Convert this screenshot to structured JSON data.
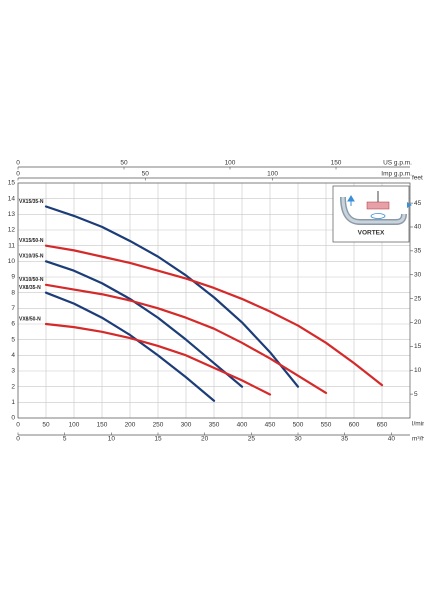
{
  "chart_data": {
    "type": "line",
    "x_label": "l/min",
    "y2_label": "feet",
    "annotations": [
      "VORTEX"
    ],
    "xlim": [
      0,
      700
    ],
    "xticks": [
      0,
      50,
      100,
      150,
      200,
      250,
      300,
      350,
      400,
      450,
      500,
      550,
      600,
      650
    ],
    "ylim": [
      0,
      15
    ],
    "yticks": [
      0,
      1,
      2,
      3,
      4,
      5,
      6,
      7,
      8,
      9,
      10,
      11,
      12,
      13,
      14,
      15
    ],
    "y2lim": [
      0,
      49.21
    ],
    "y2ticks": [
      5,
      10,
      15,
      20,
      25,
      30,
      35,
      40,
      45
    ],
    "grid": true,
    "secondary_x_axes": [
      {
        "label": "US g.p.m.",
        "position": "top",
        "xlim": [
          0,
          184.9
        ],
        "xticks": [
          0,
          50,
          100,
          150
        ]
      },
      {
        "label": "Imp g.p.m.",
        "position": "top",
        "xlim": [
          0,
          154
        ],
        "xticks": [
          0,
          50,
          100
        ]
      },
      {
        "label": "m³/h",
        "position": "bottom",
        "xlim": [
          0,
          42
        ],
        "xticks": [
          0,
          5,
          10,
          15,
          20,
          25,
          30,
          35,
          40
        ]
      }
    ],
    "series": [
      {
        "name": "VX15/35-N",
        "color": "#1c3d78",
        "x": [
          50,
          100,
          150,
          200,
          250,
          300,
          350,
          400,
          450,
          500
        ],
        "values": [
          13.5,
          12.9,
          12.2,
          11.3,
          10.3,
          9.1,
          7.7,
          6.1,
          4.2,
          2.0
        ]
      },
      {
        "name": "VX15/50-N",
        "color": "#d42a2a",
        "x": [
          50,
          100,
          150,
          200,
          250,
          300,
          350,
          400,
          450,
          500,
          550,
          600,
          650
        ],
        "values": [
          11,
          10.7,
          10.3,
          9.9,
          9.4,
          8.9,
          8.3,
          7.6,
          6.8,
          5.9,
          4.8,
          3.5,
          2.1
        ]
      },
      {
        "name": "VX10/35-N",
        "color": "#1c3d78",
        "x": [
          50,
          100,
          150,
          200,
          250,
          300,
          350,
          400
        ],
        "values": [
          10,
          9.4,
          8.6,
          7.6,
          6.4,
          5.0,
          3.5,
          2.0
        ]
      },
      {
        "name": "VX10/50-N",
        "color": "#d42a2a",
        "x": [
          50,
          100,
          150,
          200,
          250,
          300,
          350,
          400,
          450,
          500,
          550
        ],
        "values": [
          8.5,
          8.2,
          7.9,
          7.5,
          7.0,
          6.4,
          5.7,
          4.8,
          3.8,
          2.7,
          1.6
        ]
      },
      {
        "name": "VX8/35-N",
        "color": "#1c3d78",
        "x": [
          50,
          100,
          150,
          200,
          250,
          300,
          350
        ],
        "values": [
          8,
          7.3,
          6.4,
          5.3,
          4.0,
          2.6,
          1.1
        ]
      },
      {
        "name": "VX8/50-N",
        "color": "#d42a2a",
        "x": [
          50,
          100,
          150,
          200,
          250,
          300,
          350,
          400,
          450
        ],
        "values": [
          6,
          5.8,
          5.5,
          5.1,
          4.6,
          4.0,
          3.2,
          2.4,
          1.5
        ]
      }
    ]
  }
}
